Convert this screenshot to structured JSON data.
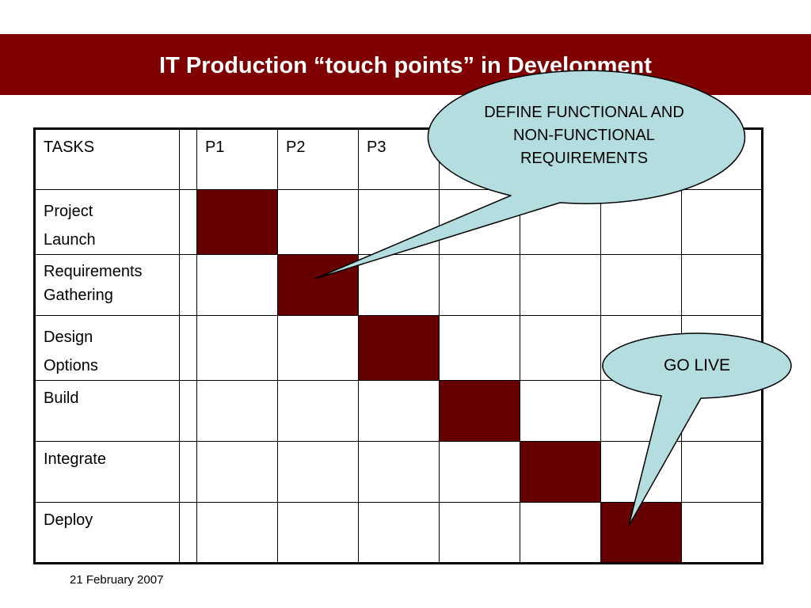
{
  "slide": {
    "title": "IT Production “touch points” in Development",
    "footer_date": "21 February 2007",
    "colors": {
      "title_band": "#7f0000",
      "filled_cell": "#660000",
      "callout_fill": "#b4dde0"
    }
  },
  "matrix": {
    "header": {
      "tasks_label": "TASKS",
      "phases": [
        "P1",
        "P2",
        "P3",
        "",
        "",
        "",
        ""
      ]
    },
    "rows": [
      {
        "lines": [
          "Project",
          "Launch"
        ],
        "filled_phase": 1
      },
      {
        "lines": [
          "Requirements",
          "Gathering"
        ],
        "filled_phase": 2
      },
      {
        "lines": [
          "Design",
          "Options"
        ],
        "filled_phase": 3
      },
      {
        "lines": [
          "Build"
        ],
        "filled_phase": 4
      },
      {
        "lines": [
          "Integrate"
        ],
        "filled_phase": 5
      },
      {
        "lines": [
          "Deploy"
        ],
        "filled_phase": 6
      }
    ]
  },
  "callouts": {
    "requirements": {
      "lines": [
        "DEFINE FUNCTIONAL AND",
        "NON-FUNCTIONAL",
        "REQUIREMENTS"
      ]
    },
    "go_live": {
      "lines": [
        "GO LIVE"
      ]
    }
  }
}
